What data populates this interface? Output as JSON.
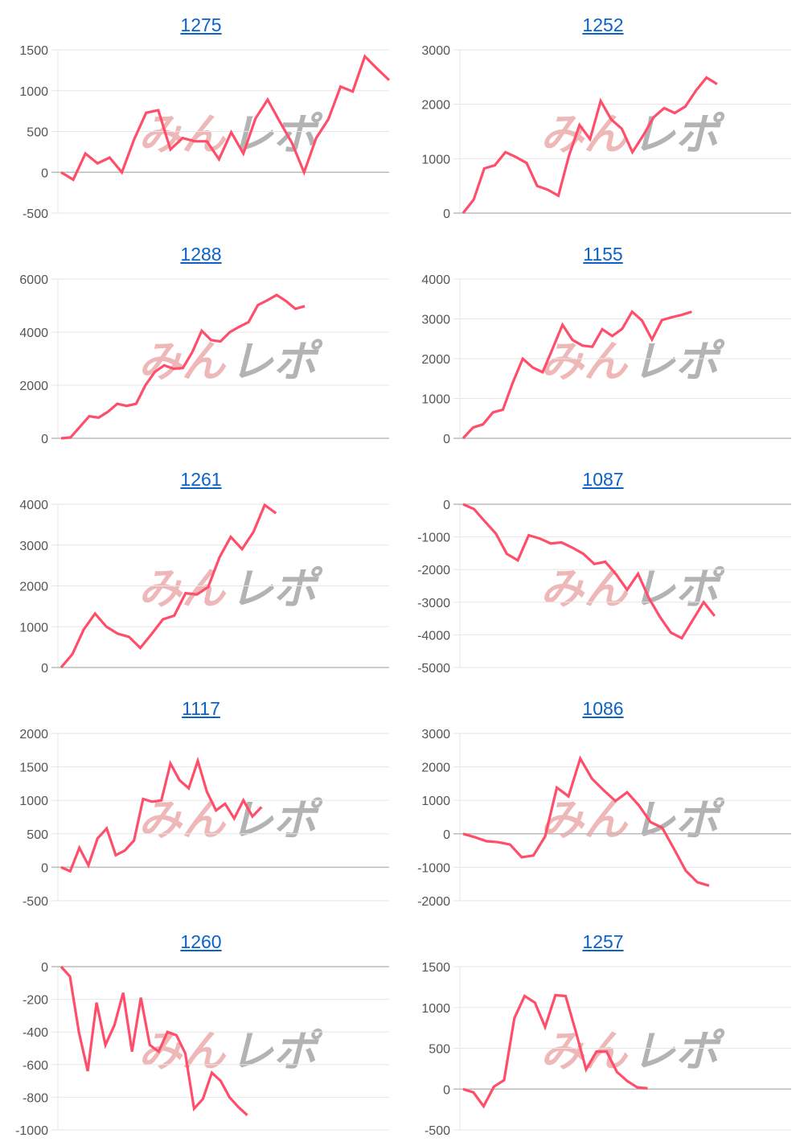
{
  "watermark": {
    "part1": "みん",
    "part2": "レポ"
  },
  "colors": {
    "line": "#ff4d6a",
    "grid": "#e6e6e6",
    "zero": "#bbbbbb",
    "title": "#0b62c9",
    "wm1": "#eaa0a0",
    "wm2": "#9a9a9a"
  },
  "chart_data": [
    {
      "type": "line",
      "title": "1275",
      "ylim": [
        -500,
        1500
      ],
      "yticks": [
        1500,
        1000,
        500,
        0,
        -500
      ],
      "x_slots": 28,
      "values": [
        0,
        -90,
        230,
        110,
        180,
        0,
        400,
        730,
        760,
        280,
        420,
        380,
        380,
        160,
        490,
        230,
        660,
        890,
        620,
        360,
        0,
        420,
        650,
        1050,
        990,
        1420,
        1270,
        1130
      ]
    },
    {
      "type": "line",
      "title": "1252",
      "ylim": [
        0,
        3000
      ],
      "yticks": [
        3000,
        2000,
        1000,
        0
      ],
      "x_slots": 32,
      "values": [
        0,
        250,
        820,
        880,
        1120,
        1030,
        920,
        500,
        430,
        320,
        1050,
        1620,
        1360,
        2060,
        1720,
        1550,
        1120,
        1420,
        1760,
        1930,
        1840,
        1960,
        2250,
        2490,
        2370
      ]
    },
    {
      "type": "line",
      "title": "1288",
      "ylim": [
        0,
        6000
      ],
      "yticks": [
        6000,
        4000,
        2000,
        0
      ],
      "x_slots": 36,
      "values": [
        0,
        30,
        430,
        830,
        780,
        1000,
        1300,
        1220,
        1300,
        2000,
        2500,
        2750,
        2620,
        2650,
        3250,
        4050,
        3700,
        3650,
        4000,
        4200,
        4380,
        5020,
        5200,
        5400,
        5170,
        4880,
        4980
      ]
    },
    {
      "type": "line",
      "title": "1155",
      "ylim": [
        0,
        4000
      ],
      "yticks": [
        4000,
        3000,
        2000,
        1000,
        0
      ],
      "x_slots": 34,
      "values": [
        0,
        270,
        350,
        650,
        720,
        1400,
        2000,
        1780,
        1660,
        2250,
        2850,
        2470,
        2330,
        2300,
        2740,
        2570,
        2750,
        3180,
        2960,
        2480,
        2970,
        3040,
        3100,
        3180
      ]
    },
    {
      "type": "line",
      "title": "1261",
      "ylim": [
        0,
        4000
      ],
      "yticks": [
        4000,
        3000,
        2000,
        1000,
        0
      ],
      "x_slots": 30,
      "values": [
        0,
        330,
        930,
        1320,
        1000,
        830,
        750,
        480,
        820,
        1180,
        1270,
        1820,
        1790,
        1970,
        2700,
        3200,
        2900,
        3320,
        3980,
        3780
      ]
    },
    {
      "type": "line",
      "title": "1087",
      "ylim": [
        -5000,
        0
      ],
      "yticks": [
        0,
        -1000,
        -2000,
        -3000,
        -4000,
        -5000
      ],
      "x_slots": 31,
      "values": [
        0,
        -150,
        -530,
        -900,
        -1520,
        -1720,
        -950,
        -1050,
        -1200,
        -1170,
        -1330,
        -1520,
        -1830,
        -1760,
        -2150,
        -2620,
        -2130,
        -2880,
        -3450,
        -3930,
        -4100,
        -3550,
        -3000,
        -3420
      ]
    },
    {
      "type": "line",
      "title": "1117",
      "ylim": [
        -500,
        2000
      ],
      "yticks": [
        2000,
        1500,
        1000,
        500,
        0,
        -500
      ],
      "x_slots": 37,
      "values": [
        0,
        -60,
        290,
        30,
        430,
        580,
        180,
        250,
        400,
        1020,
        980,
        1000,
        1550,
        1300,
        1180,
        1590,
        1130,
        850,
        950,
        730,
        1000,
        760,
        900
      ]
    },
    {
      "type": "line",
      "title": "1086",
      "ylim": [
        -2000,
        3000
      ],
      "yticks": [
        3000,
        2000,
        1000,
        0,
        -1000,
        -2000
      ],
      "x_slots": 29,
      "values": [
        0,
        -100,
        -220,
        -250,
        -320,
        -700,
        -650,
        -80,
        1380,
        1120,
        2250,
        1650,
        1300,
        980,
        1240,
        850,
        350,
        180,
        -450,
        -1100,
        -1450,
        -1550
      ]
    },
    {
      "type": "line",
      "title": "1260",
      "ylim": [
        -1000,
        0
      ],
      "yticks": [
        0,
        -200,
        -400,
        -600,
        -800,
        -1000
      ],
      "x_slots": 38,
      "values": [
        0,
        -60,
        -400,
        -640,
        -220,
        -480,
        -360,
        -160,
        -520,
        -190,
        -480,
        -520,
        -400,
        -420,
        -530,
        -870,
        -810,
        -650,
        -700,
        -800,
        -860,
        -910
      ]
    },
    {
      "type": "line",
      "title": "1257",
      "ylim": [
        -500,
        1500
      ],
      "yticks": [
        1500,
        1000,
        500,
        0,
        -500
      ],
      "x_slots": 33,
      "values": [
        0,
        -40,
        -210,
        30,
        110,
        870,
        1140,
        1060,
        760,
        1150,
        1140,
        700,
        240,
        460,
        460,
        210,
        100,
        20,
        10
      ]
    }
  ]
}
